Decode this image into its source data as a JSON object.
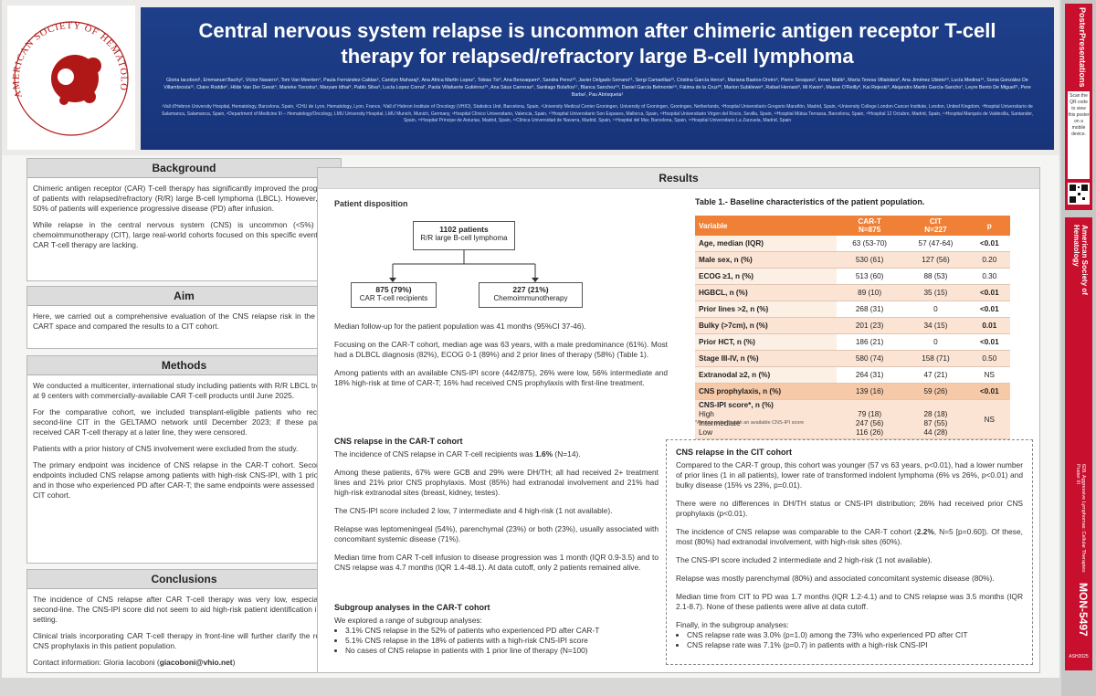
{
  "header": {
    "society": "AMERICAN SOCIETY OF HEMATOLOGY",
    "title_line1": "Central nervous system relapse is uncommon after chimeric antigen receptor T-cell",
    "title_line2": "therapy for relapsed/refractory large B-cell lymphoma",
    "authors": "Gloria Iacoboni¹, Emmanuel Bachy², Víctor Navarro³, Tom Van Meerten⁴, Paula Fernández-Caldas⁵, Carolyn Maharaj⁶, Ana Africa Martín Lopez⁷, Tobias Tix⁸, Ana Benzaquen⁹, Sandra Perez¹⁰, Javier Delgado Serrano¹¹, Sergi Camarillas¹², Cristina García Herce¹, Mariana Bastos-Oreiro⁵, Pierre Sesques², Imran Malik⁶, María Teresa Villalobos³, Ana Jiménez Ubieto¹³, Lucía Medina¹⁴, Sonia González De Villambrosía¹⁵, Claire Roddie⁶, Hilde Van Der Geest⁴, Marieke Tienstra⁴, Maryam Idhai⁸, Pablo Silva⁹, Lucía Lopez Corral⁷, Paola Villafuerte Gutiérrez¹⁶, Ana Sáus Carreras⁹, Santiago Bolaños¹⁷, Blanca Sanchez¹⁸, Daniel García Belmonte¹⁹, Fátima de la Cruz²⁰, Marion Subklewe⁸, Rafael Hernani⁹, Mi Kwon⁵, Maeve O'Reilly⁶, Kai Rejeski⁸, Alejandro Martín García-Sancho⁷, Leyre Bento De Miguel²¹, Pere Barba¹, Pau Abrisqueta¹",
    "affiliations": "¹Vall d'Hebron University Hospital, Hematology, Barcelona, Spain, ²CHU de Lyon, Hematology, Lyon, France, ³Vall d' Hebron Institute of Oncology (VHIO), Statistics Unit, Barcelona, Spain, ⁴University Medical Center Groningen, University of Groningen, Groningen, Netherlands, ⁵Hospital Universitario Gregorio Marañón, Madrid, Spain, ⁶University College London Cancer Institute, London, United Kingdom, ⁷Hospital Universitario de Salamanca, Salamanca, Spain, ⁸Department of Medicine III – Hematology/Oncology, LMU University Hospital, LMU Munich, Munich, Germany, ⁹Hospital Clínico Universitario, Valencia, Spain, ¹⁰Hospital Universitario Son Espases, Mallorca, Spain, ¹¹Hospital Universitario Virgen del Rocío, Sevilla, Spain, ¹²Hospital Mútua Terrassa, Barcelona, Spain, ¹³Hospital 12 Octubre, Madrid, Spain, ¹⁴Hospital Marqués de Valdecilla, Santander, Spain, ¹⁵Hospital Príncipe de Asturias, Madrid, Spain, ¹⁶Clínica Universidad de Navarra, Madrid, Spain, ¹⁷Hospital del Mar, Barcelona, Spain, ¹⁸Hospital Universitario La Zarzuela, Madrid, Spain"
  },
  "background": {
    "heading": "Background",
    "p1": "Chimeric antigen receptor (CAR) T-cell therapy has significantly improved the prognosis of patients with relapsed/refractory (R/R) large B-cell lymphoma (LBCL). However, over 50% of patients will experience progressive disease (PD) after infusion.",
    "p2": "While relapse in the central nervous system (CNS) is uncommon (<5%) after chemoimmunotherapy (CIT), large real-world cohorts focused on this specific event after CAR T-cell therapy are lacking."
  },
  "aim": {
    "heading": "Aim",
    "p1": "Here, we carried out a comprehensive evaluation of the CNS relapse risk in the post-CART space and compared the results to a CIT cohort."
  },
  "methods": {
    "heading": "Methods",
    "p1": "We conducted a multicenter, international study including patients with R/R LBCL treated at 9 centers with commercially-available CAR T-cell products until June 2025.",
    "p2": "For the comparative cohort, we included transplant-eligible patients who received second-line CIT in the GELTAMO network until December 2023; if these patients received CAR T-cell therapy at a later line, they were censored.",
    "p3": "Patients with a prior history of CNS involvement were excluded from the study.",
    "p4": "The primary endpoint was incidence of CNS relapse in the CAR-T cohort. Secondary endpoints included CNS relapse among patients with high-risk CNS-IPI, with 1 prior line and in those who experienced PD after CAR-T; the same endpoints were assessed in the CIT cohort."
  },
  "conclusions": {
    "heading": "Conclusions",
    "p1": "The incidence of CNS relapse after CAR T-cell therapy was very low, especially in second-line. The CNS-IPI score did not seem to aid high-risk patient identification in this setting.",
    "p2": "Clinical trials incorporating CAR T-cell therapy in front-line will further clarify the role of CNS prophylaxis in this patient population.",
    "contact_prefix": "Contact information: Gloria Iacoboni (",
    "contact_email": "giacoboni@vhio.net",
    "contact_suffix": ")"
  },
  "results": {
    "heading": "Results",
    "disposition_title": "Patient disposition",
    "flow_total_n": "1102 patients",
    "flow_total_label": "R/R large B-cell lymphoma",
    "flow_cart_n": "875 (79%)",
    "flow_cart_label": "CAR T-cell recipients",
    "flow_cit_n": "227 (21%)",
    "flow_cit_label": "Chemoimmunotherapy",
    "followup": "Median follow-up for the patient population was 41 months (95%CI 37-46).",
    "cohort_desc": "Focusing on the CAR-T cohort, median age was 63 years, with a male predominance (61%). Most had a DLBCL diagnosis (82%), ECOG 0-1 (89%) and 2 prior lines of therapy (58%) (Table 1).",
    "cnsipi_desc": "Among patients with an available CNS-IPI score (442/875), 26% were low, 56% intermediate and 18% high-risk at time of CAR-T; 16% had received CNS prophylaxis with first-line treatment.",
    "cart_title": "CNS relapse in the CAR-T cohort",
    "cart_p1_a": "The incidence of CNS relapse in CAR T-cell recipients was ",
    "cart_p1_bold": "1.6%",
    "cart_p1_b": " (N=14).",
    "cart_p2": "Among these patients, 67% were GCB and 29% were DH/TH; all had received 2+ treatment lines and 21% prior CNS prophylaxis. Most (85%) had extranodal involvement and 21% had high-risk extranodal sites (breast, kidney, testes).",
    "cart_p3": "The CNS-IPI score included 2 low, 7 intermediate and 4 high-risk (1 not available).",
    "cart_p4": "Relapse was leptomeningeal (54%), parenchymal (23%) or both (23%), usually associated with concomitant systemic disease (71%).",
    "cart_p5": "Median time from CAR T-cell infusion to disease progression was 1 month (IQR 0.9-3.5) and to CNS relapse was 4.7 months (IQR 1.4-48.1). At data cutoff, only 2 patients remained alive.",
    "sub_title": "Subgroup analyses in the CAR-T cohort",
    "sub_intro": "We explored a range of subgroup analyses:",
    "sub_items": [
      "3.1% CNS relapse in the 52% of patients who experienced PD after CAR-T",
      "5.1% CNS relapse in the 18% of patients with a high-risk CNS-IPI score",
      "No cases of CNS relapse in patients with 1 prior line of therapy (N=100)"
    ],
    "cit_title": "CNS relapse in the CIT cohort",
    "cit_p1": "Compared to the CAR-T group, this cohort was younger (57 vs 63 years, p<0.01), had a lower number of prior lines (1 in all patients), lower rate of transformed indolent lymphoma (6% vs 26%, p<0.01) and bulky disease (15% vs 23%, p=0.01).",
    "cit_p2": "There were no differences in DH/TH status or CNS-IPI distribution; 26% had received prior CNS prophylaxis (p<0.01).",
    "cit_p3_a": "The incidence of CNS relapse was comparable to the CAR-T cohort (",
    "cit_p3_bold": "2.2%",
    "cit_p3_b": ", N=5 [p=0.60]). Of these, most (80%) had extranodal involvement, with high-risk sites (60%).",
    "cit_p4": "The CNS-IPI score included 2 intermediate and 2 high-risk (1 not available).",
    "cit_p5": "Relapse was mostly parenchymal (80%) and associated concomitant systemic disease (80%).",
    "cit_p6": "Median time from CIT to PD was 1.7 months (IQR 1.2-4.1) and to CNS relapse was 3.5 months (IQR 2.1-8.7). None of these patients were alive at data cutoff.",
    "cit_sub_intro": "Finally, in the subgroup analyses:",
    "cit_sub_items": [
      "CNS relapse rate was 3.0% (p=1.0) among the 73% who experienced PD after CIT",
      "CNS relapse rate was 7.1% (p=0.7) in patients with a high-risk CNS-IPI"
    ]
  },
  "table": {
    "caption": "Table 1.- Baseline characteristics of the patient population.",
    "h_var": "Variable",
    "h_cart": "CAR-T",
    "h_cart_n": "N=875",
    "h_cit": "CIT",
    "h_cit_n": "N=227",
    "h_p": "p",
    "rows": [
      {
        "label": "Age, median (IQR)",
        "cart": "63 (53-70)",
        "cit": "57 (47-64)",
        "p": "<0.01"
      },
      {
        "label": "Male sex, n (%)",
        "cart": "530 (61)",
        "cit": "127 (56)",
        "p": "0.20"
      },
      {
        "label": "ECOG ≥1, n (%)",
        "cart": "513 (60)",
        "cit": "88 (53)",
        "p": "0.30"
      },
      {
        "label": "HGBCL, n (%)",
        "cart": "89 (10)",
        "cit": "35 (15)",
        "p": "<0.01"
      },
      {
        "label": "Prior lines >2, n (%)",
        "cart": "268 (31)",
        "cit": "0",
        "p": "<0.01"
      },
      {
        "label": "Bulky (>7cm), n (%)",
        "cart": "201 (23)",
        "cit": "34 (15)",
        "p": "0.01"
      },
      {
        "label": "Prior HCT, n (%)",
        "cart": "186 (21)",
        "cit": "0",
        "p": "<0.01"
      },
      {
        "label": "Stage III-IV, n (%)",
        "cart": "580 (74)",
        "cit": "158 (71)",
        "p": "0.50"
      },
      {
        "label": "Extranodal ≥2, n (%)",
        "cart": "264 (31)",
        "cit": "47 (21)",
        "p": "NS"
      },
      {
        "label": "CNS prophylaxis, n (%)",
        "cart": "139 (16)",
        "cit": "59 (26)",
        "p": "<0.01"
      }
    ],
    "ipi_label": "CNS-IPI score*, n (%)",
    "ipi_rows": [
      {
        "label": "High",
        "cart": "79 (18)",
        "cit": "28 (18)"
      },
      {
        "label": "Intermediate",
        "cart": "247 (56)",
        "cit": "87 (55)"
      },
      {
        "label": "Low",
        "cart": "116 (26)",
        "cit": "44 (28)"
      }
    ],
    "ipi_p": "NS",
    "note": "*Among patients with an available CNS-IPI score"
  },
  "side": {
    "brand": "PosterPresentations",
    "scan_text": "Scan the QR code to view this poster on a mobile device.",
    "ash_label": "American Society of Hematology",
    "session": "628. Aggressive Lymphomas: Cellular Therapies: Poster III",
    "presenter": "Gloria Iacoboni",
    "poster_id": "MON-5497",
    "year_tag": "ASH2025"
  }
}
